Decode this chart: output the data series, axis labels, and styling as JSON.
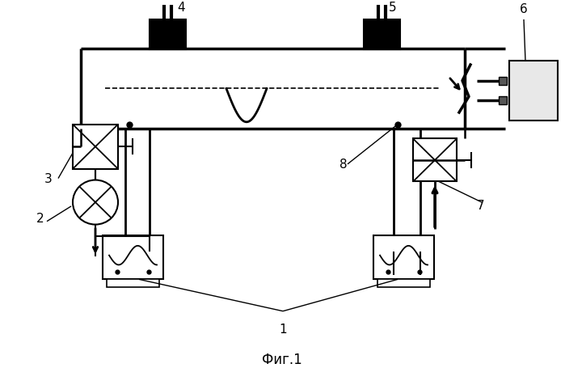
{
  "title": "Фиг.1",
  "bg_color": "#ffffff",
  "line_color": "#000000"
}
